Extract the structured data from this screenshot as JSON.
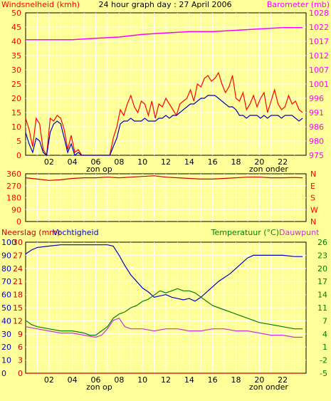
{
  "title": "24 hour graph day : 27 April 2006",
  "colors": {
    "background": "#ffff99",
    "grid": "#ffffff",
    "axis": "#000000",
    "wind_label": "#ff0000",
    "wind_series": "#ff0000",
    "gust_series": "#ff0000",
    "wind_avg_series": "#0000cc",
    "barometer": "#ff00ff",
    "direction": "#cc0000",
    "humidity": "#0000cc",
    "temperature": "#008000",
    "dewpoint": "#cc33cc",
    "rain": "#cc0000"
  },
  "chart_data": [
    {
      "type": "line",
      "panel": "wind-barometer",
      "left_label": "Windsnelheid (kmh)",
      "right_label": "Barometer (mb)",
      "left_ticks": [
        "0",
        "5",
        "10",
        "15",
        "20",
        "25",
        "30",
        "35",
        "40",
        "45",
        "50"
      ],
      "left_range": [
        0,
        50
      ],
      "right_ticks": [
        "975",
        "980",
        "986",
        "991",
        "996",
        "1001",
        "1007",
        "1012",
        "1017",
        "1022",
        "1028"
      ],
      "right_range": [
        975,
        1028
      ],
      "x_range": [
        0,
        24
      ],
      "x_ticks": [
        "02",
        "04",
        "06",
        "08",
        "10",
        "12",
        "14",
        "16",
        "18",
        "20",
        "22"
      ],
      "x_tick_hours": [
        2,
        4,
        6,
        8,
        10,
        12,
        14,
        16,
        18,
        20,
        22
      ],
      "grid": true,
      "markers": [
        {
          "label": "zon op",
          "hour": 6.3
        },
        {
          "label": "zon onder",
          "hour": 20.8
        }
      ],
      "series": [
        {
          "key": "gust",
          "axis": "left",
          "x": [
            0,
            0.3,
            0.6,
            0.9,
            1.2,
            1.5,
            1.8,
            2.1,
            2.4,
            2.7,
            3.0,
            3.3,
            3.6,
            3.9,
            4.2,
            4.5,
            4.8,
            5.1,
            5.4,
            5.7,
            6.0,
            6.3,
            6.6,
            6.9,
            7.2,
            7.5,
            7.8,
            8.1,
            8.4,
            8.7,
            9.0,
            9.3,
            9.6,
            9.9,
            10.2,
            10.5,
            10.8,
            11.1,
            11.4,
            11.7,
            12.0,
            12.3,
            12.6,
            12.9,
            13.2,
            13.5,
            13.8,
            14.1,
            14.4,
            14.7,
            15.0,
            15.3,
            15.6,
            15.9,
            16.2,
            16.5,
            16.8,
            17.1,
            17.4,
            17.7,
            18.0,
            18.3,
            18.6,
            18.9,
            19.2,
            19.5,
            19.8,
            20.1,
            20.4,
            20.7,
            21.0,
            21.3,
            21.6,
            21.9,
            22.2,
            22.5,
            22.8,
            23.1,
            23.4,
            23.7
          ],
          "values": [
            13,
            9,
            3,
            13,
            11,
            2,
            0,
            13,
            12,
            14,
            13,
            9,
            2,
            7,
            1,
            2,
            0,
            0,
            0,
            0,
            0,
            0,
            0,
            0,
            0,
            6,
            10,
            16,
            14,
            18,
            21,
            17,
            15,
            19,
            18,
            14,
            19,
            13,
            18,
            17,
            20,
            18,
            16,
            14,
            18,
            19,
            20,
            23,
            19,
            25,
            24,
            27,
            28,
            26,
            27,
            29,
            25,
            22,
            24,
            28,
            20,
            19,
            22,
            16,
            18,
            21,
            17,
            20,
            22,
            15,
            19,
            23,
            18,
            16,
            17,
            21,
            18,
            19,
            16,
            15
          ]
        },
        {
          "key": "wind_avg",
          "axis": "left",
          "x": [
            0,
            0.3,
            0.6,
            0.9,
            1.2,
            1.5,
            1.8,
            2.1,
            2.4,
            2.7,
            3.0,
            3.3,
            3.6,
            3.9,
            4.2,
            4.5,
            4.8,
            5.1,
            5.4,
            5.7,
            6.0,
            6.3,
            6.6,
            6.9,
            7.2,
            7.5,
            7.8,
            8.1,
            8.4,
            8.7,
            9.0,
            9.3,
            9.6,
            9.9,
            10.2,
            10.5,
            10.8,
            11.1,
            11.4,
            11.7,
            12.0,
            12.3,
            12.6,
            12.9,
            13.2,
            13.5,
            13.8,
            14.1,
            14.4,
            14.7,
            15.0,
            15.3,
            15.6,
            15.9,
            16.2,
            16.5,
            16.8,
            17.1,
            17.4,
            17.7,
            18.0,
            18.3,
            18.6,
            18.9,
            19.2,
            19.5,
            19.8,
            20.1,
            20.4,
            20.7,
            21.0,
            21.3,
            21.6,
            21.9,
            22.2,
            22.5,
            22.8,
            23.1,
            23.4,
            23.7
          ],
          "values": [
            8,
            4,
            1,
            6,
            5,
            1,
            0,
            8,
            11,
            12,
            11,
            6,
            1,
            4,
            0,
            1,
            0,
            0,
            0,
            0,
            0,
            0,
            0,
            0,
            0,
            3,
            6,
            11,
            12,
            12,
            13,
            12,
            12,
            12,
            13,
            12,
            12,
            12,
            13,
            13,
            14,
            13,
            14,
            14,
            15,
            16,
            17,
            18,
            18,
            19,
            20,
            20,
            21,
            21,
            21,
            20,
            19,
            18,
            17,
            17,
            16,
            14,
            14,
            13,
            14,
            14,
            14,
            13,
            14,
            13,
            14,
            14,
            14,
            13,
            14,
            14,
            14,
            13,
            12,
            13
          ]
        },
        {
          "key": "barometer",
          "axis": "right",
          "x": [
            0,
            2,
            4,
            6,
            8,
            10,
            12,
            14,
            16,
            18,
            20,
            22,
            23.7
          ],
          "values": [
            1018,
            1018,
            1018,
            1018.5,
            1019,
            1020,
            1020.5,
            1021,
            1021,
            1021.5,
            1022,
            1022.5,
            1022.5
          ]
        }
      ]
    },
    {
      "type": "line",
      "panel": "wind-direction",
      "left_ticks": [
        "0",
        "90",
        "180",
        "270",
        "360"
      ],
      "left_range": [
        0,
        360
      ],
      "right_ticks": [
        "N",
        "W",
        "S",
        "E",
        "N"
      ],
      "x_range": [
        0,
        24
      ],
      "grid": true,
      "series": [
        {
          "key": "direction",
          "axis": "left",
          "x": [
            0,
            1,
            2,
            3,
            4,
            5,
            6,
            7,
            8,
            9,
            10,
            11,
            12,
            13,
            14,
            15,
            16,
            17,
            18,
            19,
            20,
            21,
            22,
            23,
            23.7
          ],
          "values": [
            330,
            320,
            310,
            315,
            325,
            330,
            330,
            335,
            330,
            335,
            340,
            345,
            335,
            330,
            325,
            320,
            320,
            325,
            330,
            335,
            335,
            330,
            330,
            332,
            330
          ]
        }
      ]
    },
    {
      "type": "line",
      "panel": "rain-humidity-temperature",
      "left_label_1": "Neerslag (mm)",
      "left_label_2": "Vochtigheid",
      "right_label_1": "Temperatuur (°C)",
      "right_label_2": "Dauwpunt",
      "left_ticks_outer": [
        "0",
        "10",
        "20",
        "30",
        "40",
        "50",
        "60",
        "70",
        "80",
        "90",
        "100"
      ],
      "left_ticks_inner": [
        "0",
        "3",
        "6",
        "9",
        "12",
        "15",
        "18",
        "21",
        "24",
        "27",
        "30"
      ],
      "left_range": [
        0,
        100
      ],
      "right_ticks": [
        "-5",
        "-2",
        "1",
        "4",
        "7",
        "11",
        "14",
        "17",
        "20",
        "23",
        "26"
      ],
      "right_range": [
        -5,
        26
      ],
      "x_range": [
        0,
        24
      ],
      "x_ticks": [
        "02",
        "04",
        "06",
        "08",
        "10",
        "12",
        "14",
        "16",
        "18",
        "20",
        "22"
      ],
      "x_tick_hours": [
        2,
        4,
        6,
        8,
        10,
        12,
        14,
        16,
        18,
        20,
        22
      ],
      "grid": true,
      "markers": [
        {
          "label": "zon op",
          "hour": 6.3
        },
        {
          "label": "zon onder",
          "hour": 20.8
        }
      ],
      "series": [
        {
          "key": "humidity",
          "axis": "left",
          "x": [
            0,
            0.5,
            1,
            2,
            3,
            4,
            5,
            6,
            7,
            7.5,
            8,
            8.5,
            9,
            9.5,
            10,
            10.5,
            11,
            11.5,
            12,
            12.5,
            13,
            13.5,
            14,
            14.5,
            15,
            15.5,
            16,
            16.5,
            17,
            17.5,
            18,
            18.5,
            19,
            19.5,
            20,
            21,
            22,
            23,
            23.7
          ],
          "values": [
            91,
            94,
            96,
            97,
            98,
            98,
            98,
            98,
            98,
            97,
            90,
            82,
            75,
            70,
            65,
            62,
            58,
            59,
            60,
            58,
            57,
            56,
            57,
            55,
            58,
            62,
            66,
            70,
            73,
            76,
            80,
            84,
            88,
            90,
            90,
            90,
            90,
            89,
            89
          ]
        },
        {
          "key": "temperature",
          "axis": "right",
          "x": [
            0,
            0.5,
            1,
            2,
            3,
            4,
            5,
            5.5,
            6,
            6.5,
            7,
            7.5,
            8,
            8.5,
            9,
            9.5,
            10,
            10.5,
            11,
            11.5,
            12,
            12.5,
            13,
            13.5,
            14,
            14.5,
            15,
            15.5,
            16,
            16.5,
            17,
            17.5,
            18,
            19,
            20,
            21,
            22,
            23,
            23.7
          ],
          "values": [
            7.5,
            6.5,
            6,
            5.5,
            5,
            5,
            4.5,
            4,
            4,
            5,
            6,
            8,
            9,
            9.5,
            10.5,
            11,
            12,
            12.5,
            13.5,
            14.5,
            14,
            14.5,
            15,
            14.5,
            14.5,
            14,
            13,
            12,
            11,
            10.5,
            10,
            9.5,
            9,
            8,
            7,
            6.5,
            6,
            5.5,
            5.5
          ]
        },
        {
          "key": "dewpoint",
          "axis": "right",
          "x": [
            0,
            1,
            2,
            3,
            4,
            5,
            6,
            6.5,
            7,
            7.5,
            8,
            8.5,
            9,
            10,
            11,
            12,
            13,
            14,
            15,
            16,
            17,
            18,
            19,
            20,
            21,
            22,
            23,
            23.7
          ],
          "values": [
            6,
            5.5,
            5,
            4.5,
            4.5,
            4,
            3.5,
            4,
            5.5,
            7.5,
            8,
            6,
            5.5,
            5.5,
            5,
            5.5,
            5.5,
            5,
            5,
            5.5,
            5.5,
            5,
            5,
            4.5,
            4,
            4,
            3.5,
            3.5
          ]
        },
        {
          "key": "rain",
          "axis": "left",
          "x": [
            0,
            23.7
          ],
          "values": [
            0,
            0
          ]
        }
      ]
    }
  ]
}
